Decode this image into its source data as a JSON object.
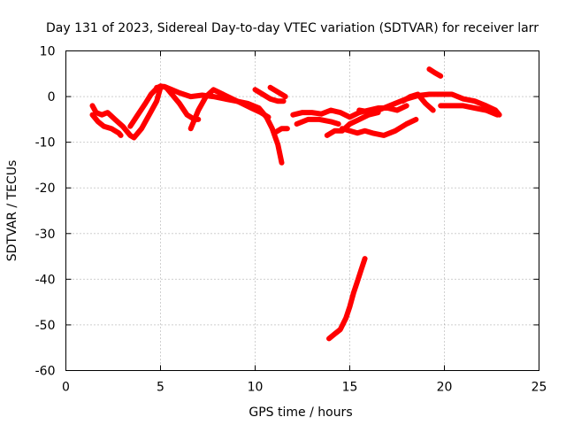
{
  "chart_data": {
    "type": "line",
    "title": "Day 131 of 2023, Sidereal Day-to-day VTEC variation (SDTVAR) for receiver larr",
    "xlabel": "GPS time / hours",
    "ylabel": "SDTVAR / TECUs",
    "xlim": [
      0,
      25
    ],
    "ylim": [
      -60,
      10
    ],
    "xticks": [
      0,
      5,
      10,
      15,
      20,
      25
    ],
    "yticks": [
      10,
      0,
      -10,
      -20,
      -30,
      -40,
      -50,
      -60
    ],
    "grid": true,
    "color": "#ff0000",
    "series": [
      {
        "name": "arc-1",
        "x": [
          1.4,
          1.7,
          2.0,
          2.4,
          2.8,
          2.9
        ],
        "y": [
          -4,
          -5.5,
          -6.5,
          -7,
          -8,
          -8.5
        ]
      },
      {
        "name": "arc-2",
        "x": [
          1.4,
          1.6,
          1.9,
          2.2,
          2.6,
          3.0,
          3.4,
          3.6,
          4.0,
          4.4,
          4.8,
          5.0
        ],
        "y": [
          -2,
          -3.5,
          -4,
          -3.5,
          -5,
          -6.5,
          -8.5,
          -9,
          -7,
          -4,
          -1,
          2
        ]
      },
      {
        "name": "arc-3",
        "x": [
          3.4,
          3.8,
          4.2,
          4.5,
          4.8,
          5.0,
          5.3,
          5.6,
          6.0,
          6.4,
          6.8,
          7.0
        ],
        "y": [
          -6.5,
          -4,
          -1.5,
          0.5,
          1.8,
          2.3,
          2,
          0.5,
          -1.5,
          -4,
          -5,
          -5
        ]
      },
      {
        "name": "arc-4",
        "x": [
          4.8,
          5.2,
          5.6,
          6.0,
          6.6,
          7.2,
          7.8,
          8.4,
          9.0,
          9.6,
          10.2,
          10.6,
          10.9,
          11.2,
          11.4
        ],
        "y": [
          2,
          2.2,
          1.5,
          0.8,
          0,
          0.3,
          0,
          -0.5,
          -1,
          -1.5,
          -2.5,
          -4.5,
          -7,
          -10.5,
          -14.5
        ]
      },
      {
        "name": "arc-5",
        "x": [
          6.6,
          7.0,
          7.4,
          7.8,
          8.3,
          8.8,
          9.3,
          9.8,
          10.3,
          10.7
        ],
        "y": [
          -7,
          -3,
          0,
          1.5,
          0.5,
          -0.5,
          -1.5,
          -2.5,
          -3.5,
          -4.5
        ]
      },
      {
        "name": "arc-6",
        "x": [
          10.0,
          10.4,
          10.8,
          11.2,
          11.5
        ],
        "y": [
          1.5,
          0.5,
          -0.5,
          -1,
          -1
        ]
      },
      {
        "name": "arc-7",
        "x": [
          10.8,
          11.2,
          11.6
        ],
        "y": [
          2,
          1,
          0
        ]
      },
      {
        "name": "arc-8",
        "x": [
          11.0,
          11.4,
          11.7
        ],
        "y": [
          -8,
          -7,
          -7
        ]
      },
      {
        "name": "arc-9",
        "x": [
          12.0,
          12.5,
          13.0,
          13.5,
          14.0,
          14.5,
          15.0,
          15.5,
          16.0,
          16.5,
          17.0,
          17.5,
          18.0
        ],
        "y": [
          -4,
          -3.5,
          -3.5,
          -3.8,
          -3,
          -3.5,
          -4.5,
          -3.5,
          -3,
          -2.5,
          -2.5,
          -3,
          -2
        ]
      },
      {
        "name": "arc-10",
        "x": [
          12.2,
          12.8,
          13.4,
          14.0,
          14.4
        ],
        "y": [
          -6,
          -5,
          -5,
          -5.5,
          -6
        ]
      },
      {
        "name": "arc-11",
        "x": [
          13.8,
          14.2,
          14.6,
          15.0,
          15.5,
          16.0,
          16.5
        ],
        "y": [
          -8.5,
          -7.5,
          -7.5,
          -6,
          -5,
          -4,
          -3.5
        ]
      },
      {
        "name": "arc-12",
        "x": [
          14.6,
          15.0,
          15.4,
          15.8,
          16.2,
          16.8,
          17.4,
          18.0,
          18.5
        ],
        "y": [
          -7,
          -7.5,
          -8,
          -7.5,
          -8,
          -8.5,
          -7.5,
          -6,
          -5
        ]
      },
      {
        "name": "arc-13",
        "x": [
          15.5,
          16.2,
          16.8,
          17.4,
          18.0,
          18.6,
          19.2,
          19.8,
          20.4,
          21.0,
          21.6,
          22.2,
          22.7,
          22.9
        ],
        "y": [
          -3,
          -3.5,
          -2.5,
          -1.5,
          -0.5,
          0.2,
          0.5,
          0.5,
          0.5,
          -0.5,
          -1,
          -2,
          -3,
          -4
        ]
      },
      {
        "name": "arc-14",
        "x": [
          17.8,
          18.2,
          18.6,
          19.0,
          19.4
        ],
        "y": [
          -1,
          0,
          0.5,
          -1.5,
          -3
        ]
      },
      {
        "name": "arc-15",
        "x": [
          19.2,
          19.5,
          19.8
        ],
        "y": [
          6,
          5.2,
          4.5
        ]
      },
      {
        "name": "arc-16",
        "x": [
          19.8,
          20.4,
          21.0,
          21.6,
          22.2,
          22.8
        ],
        "y": [
          -2,
          -2,
          -2,
          -2.5,
          -3,
          -4
        ]
      },
      {
        "name": "arc-17",
        "x": [
          13.9,
          14.2,
          14.5,
          14.8,
          15.0,
          15.2,
          15.4,
          15.6,
          15.8
        ],
        "y": [
          -53,
          -52,
          -51,
          -48.5,
          -46,
          -43,
          -40.5,
          -38,
          -35.5
        ]
      }
    ]
  }
}
